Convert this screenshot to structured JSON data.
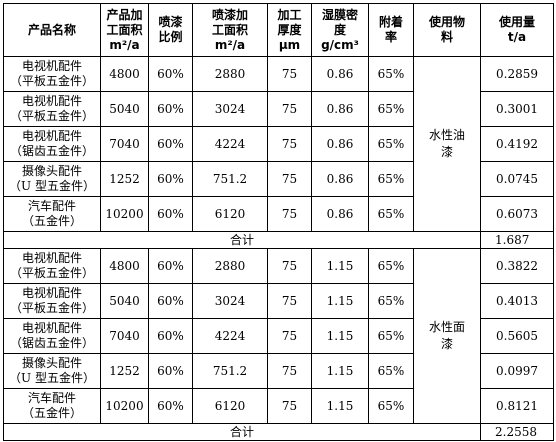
{
  "headers": {
    "name": [
      "产品名称"
    ],
    "area": [
      "产品加",
      "工面积",
      "m²/a"
    ],
    "ratio": [
      "喷漆",
      "比例"
    ],
    "spray_area": [
      "喷漆加",
      "工面积",
      "m²/a"
    ],
    "thickness": [
      "加工",
      "厚度",
      "μm"
    ],
    "density": [
      "湿膜密",
      "度",
      "g/cm³"
    ],
    "adhesion": [
      "附着",
      "率"
    ],
    "material": [
      "使用物",
      "料"
    ],
    "usage": [
      "使用量",
      "t/a"
    ]
  },
  "groups": [
    {
      "coating": [
        "水性油",
        "漆"
      ],
      "rows": [
        {
          "name": [
            "电视机配件",
            "（平板五金件）"
          ],
          "area": "4800",
          "ratio": "60%",
          "spray_area": "2880",
          "thickness": "75",
          "density": "0.86",
          "adhesion": "65%",
          "usage": "0.2859"
        },
        {
          "name": [
            "电视机配件",
            "（平板五金件）"
          ],
          "area": "5040",
          "ratio": "60%",
          "spray_area": "3024",
          "thickness": "75",
          "density": "0.86",
          "adhesion": "65%",
          "usage": "0.3001"
        },
        {
          "name": [
            "电视机配件",
            "（锯齿五金件）"
          ],
          "area": "7040",
          "ratio": "60%",
          "spray_area": "4224",
          "thickness": "75",
          "density": "0.86",
          "adhesion": "65%",
          "usage": "0.4192"
        },
        {
          "name": [
            "摄像头配件",
            "（U 型五金件）"
          ],
          "area": "1252",
          "ratio": "60%",
          "spray_area": "751.2",
          "thickness": "75",
          "density": "0.86",
          "adhesion": "65%",
          "usage": "0.0745"
        },
        {
          "name": [
            "汽车配件",
            "（五金件）"
          ],
          "area": "10200",
          "ratio": "60%",
          "spray_area": "6120",
          "thickness": "75",
          "density": "0.86",
          "adhesion": "65%",
          "usage": "0.6073"
        }
      ],
      "total_label": "合计",
      "total": "1.687"
    },
    {
      "coating": [
        "水性面",
        "漆"
      ],
      "rows": [
        {
          "name": [
            "电视机配件",
            "（平板五金件）"
          ],
          "area": "4800",
          "ratio": "60%",
          "spray_area": "2880",
          "thickness": "75",
          "density": "1.15",
          "adhesion": "65%",
          "usage": "0.3822"
        },
        {
          "name": [
            "电视机配件",
            "（平板五金件）"
          ],
          "area": "5040",
          "ratio": "60%",
          "spray_area": "3024",
          "thickness": "75",
          "density": "1.15",
          "adhesion": "65%",
          "usage": "0.4013"
        },
        {
          "name": [
            "电视机配件",
            "（锯齿五金件）"
          ],
          "area": "7040",
          "ratio": "60%",
          "spray_area": "4224",
          "thickness": "75",
          "density": "1.15",
          "adhesion": "65%",
          "usage": "0.5605"
        },
        {
          "name": [
            "摄像头配件",
            "（U 型五金件）"
          ],
          "area": "1252",
          "ratio": "60%",
          "spray_area": "751.2",
          "thickness": "75",
          "density": "1.15",
          "adhesion": "65%",
          "usage": "0.0997"
        },
        {
          "name": [
            "汽车配件",
            "（五金件）"
          ],
          "area": "10200",
          "ratio": "60%",
          "spray_area": "6120",
          "thickness": "75",
          "density": "1.15",
          "adhesion": "65%",
          "usage": "0.8121"
        }
      ],
      "total_label": "合计",
      "total": "2.2558"
    }
  ]
}
